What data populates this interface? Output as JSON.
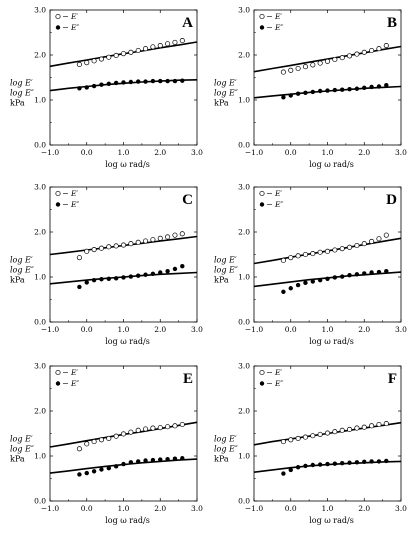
{
  "chart_data": [
    {
      "type": "scatter",
      "panel": "A",
      "ylabel": [
        "log E′",
        "log E″",
        "kPa"
      ],
      "xlabel": "log ω  rad/s",
      "xlim": [
        -1.0,
        3.0
      ],
      "ylim": [
        0.0,
        3.0
      ],
      "xticks": [
        "−1.0",
        "0.0",
        "1.0",
        "2.0",
        "3.0"
      ],
      "yticks": [
        "0.0",
        "1.0",
        "2.0",
        "3.0"
      ],
      "legend": [
        "E′",
        "E″"
      ],
      "series": [
        {
          "name": "E′",
          "marker": "open",
          "x": [
            -0.2,
            0.0,
            0.2,
            0.4,
            0.6,
            0.8,
            1.0,
            1.2,
            1.4,
            1.6,
            1.8,
            2.0,
            2.2,
            2.4,
            2.6
          ],
          "y": [
            1.79,
            1.83,
            1.87,
            1.91,
            1.95,
            1.99,
            2.03,
            2.06,
            2.1,
            2.14,
            2.18,
            2.21,
            2.25,
            2.28,
            2.32
          ]
        },
        {
          "name": "E″",
          "marker": "filled",
          "x": [
            -0.2,
            0.0,
            0.2,
            0.4,
            0.6,
            0.8,
            1.0,
            1.2,
            1.4,
            1.6,
            1.8,
            2.0,
            2.2,
            2.4,
            2.6
          ],
          "y": [
            1.26,
            1.28,
            1.31,
            1.34,
            1.36,
            1.38,
            1.39,
            1.4,
            1.41,
            1.41,
            1.42,
            1.42,
            1.42,
            1.42,
            1.43
          ]
        }
      ],
      "fits": [
        {
          "x": [
            -1.0,
            -0.5,
            0.0,
            0.5,
            1.0,
            1.5,
            2.0,
            2.5,
            3.0
          ],
          "y": [
            1.75,
            1.82,
            1.89,
            1.96,
            2.03,
            2.09,
            2.16,
            2.22,
            2.29
          ]
        },
        {
          "x": [
            -1.0,
            -0.5,
            0.0,
            0.5,
            1.0,
            1.5,
            2.0,
            2.5,
            3.0
          ],
          "y": [
            1.21,
            1.26,
            1.3,
            1.34,
            1.37,
            1.4,
            1.42,
            1.44,
            1.45
          ]
        }
      ]
    },
    {
      "type": "scatter",
      "panel": "B",
      "ylabel": [
        "log E′",
        "log E″",
        "kPa"
      ],
      "xlabel": "log ω  rad/s",
      "xlim": [
        -1.0,
        3.0
      ],
      "ylim": [
        0.0,
        3.0
      ],
      "xticks": [
        "−1.0",
        "0.0",
        "1.0",
        "2.0",
        "3.0"
      ],
      "yticks": [
        "0.0",
        "1.0",
        "2.0",
        "3.0"
      ],
      "legend": [
        "E′",
        "E″"
      ],
      "series": [
        {
          "name": "E′",
          "marker": "open",
          "x": [
            -0.2,
            0.0,
            0.2,
            0.4,
            0.6,
            0.8,
            1.0,
            1.2,
            1.4,
            1.6,
            1.8,
            2.0,
            2.2,
            2.4,
            2.6
          ],
          "y": [
            1.62,
            1.66,
            1.7,
            1.74,
            1.78,
            1.82,
            1.86,
            1.9,
            1.94,
            1.98,
            2.02,
            2.06,
            2.1,
            2.14,
            2.21
          ]
        },
        {
          "name": "E″",
          "marker": "filled",
          "x": [
            -0.2,
            0.0,
            0.2,
            0.4,
            0.6,
            0.8,
            1.0,
            1.2,
            1.4,
            1.6,
            1.8,
            2.0,
            2.2,
            2.4,
            2.6
          ],
          "y": [
            1.06,
            1.1,
            1.14,
            1.16,
            1.18,
            1.2,
            1.21,
            1.22,
            1.23,
            1.24,
            1.25,
            1.27,
            1.29,
            1.3,
            1.33
          ]
        }
      ],
      "fits": [
        {
          "x": [
            -1.0,
            -0.5,
            0.0,
            0.5,
            1.0,
            1.5,
            2.0,
            2.5,
            3.0
          ],
          "y": [
            1.63,
            1.7,
            1.77,
            1.84,
            1.91,
            1.98,
            2.05,
            2.12,
            2.19
          ]
        },
        {
          "x": [
            -1.0,
            -0.5,
            0.0,
            0.5,
            1.0,
            1.5,
            2.0,
            2.5,
            3.0
          ],
          "y": [
            1.05,
            1.09,
            1.13,
            1.17,
            1.2,
            1.23,
            1.26,
            1.28,
            1.3
          ]
        }
      ]
    },
    {
      "type": "scatter",
      "panel": "C",
      "ylabel": [
        "log E′",
        "log E″",
        "kPa"
      ],
      "xlabel": "log ω  rad/s",
      "xlim": [
        -1.0,
        3.0
      ],
      "ylim": [
        0.0,
        3.0
      ],
      "xticks": [
        "−1.0",
        "0.0",
        "1.0",
        "2.0",
        "3.0"
      ],
      "yticks": [
        "0.0",
        "1.0",
        "2.0",
        "3.0"
      ],
      "legend": [
        "E′",
        "E″"
      ],
      "series": [
        {
          "name": "E′",
          "marker": "open",
          "x": [
            -0.2,
            0.0,
            0.2,
            0.4,
            0.6,
            0.8,
            1.0,
            1.2,
            1.4,
            1.6,
            1.8,
            2.0,
            2.2,
            2.4,
            2.6
          ],
          "y": [
            1.43,
            1.57,
            1.61,
            1.64,
            1.67,
            1.69,
            1.71,
            1.74,
            1.77,
            1.8,
            1.83,
            1.86,
            1.89,
            1.93,
            1.96
          ]
        },
        {
          "name": "E″",
          "marker": "filled",
          "x": [
            -0.2,
            0.0,
            0.2,
            0.4,
            0.6,
            0.8,
            1.0,
            1.2,
            1.4,
            1.6,
            1.8,
            2.0,
            2.2,
            2.4,
            2.6
          ],
          "y": [
            0.78,
            0.88,
            0.93,
            0.95,
            0.96,
            0.97,
            0.99,
            1.01,
            1.03,
            1.05,
            1.07,
            1.1,
            1.13,
            1.18,
            1.24
          ]
        }
      ],
      "fits": [
        {
          "x": [
            -1.0,
            -0.5,
            0.0,
            0.5,
            1.0,
            1.5,
            2.0,
            2.5,
            3.0
          ],
          "y": [
            1.5,
            1.55,
            1.6,
            1.65,
            1.7,
            1.75,
            1.8,
            1.85,
            1.9
          ]
        },
        {
          "x": [
            -1.0,
            -0.5,
            0.0,
            0.5,
            1.0,
            1.5,
            2.0,
            2.5,
            3.0
          ],
          "y": [
            0.85,
            0.89,
            0.93,
            0.97,
            1.0,
            1.03,
            1.06,
            1.08,
            1.1
          ]
        }
      ]
    },
    {
      "type": "scatter",
      "panel": "D",
      "ylabel": [
        "log E′",
        "log E″",
        "kPa"
      ],
      "xlabel": "log ω  rad/s",
      "xlim": [
        -1.0,
        3.0
      ],
      "ylim": [
        0.0,
        3.0
      ],
      "xticks": [
        "−1.0",
        "0.0",
        "1.0",
        "2.0",
        "3.0"
      ],
      "yticks": [
        "0.0",
        "1.0",
        "2.0",
        "3.0"
      ],
      "legend": [
        "E′",
        "E″"
      ],
      "series": [
        {
          "name": "E′",
          "marker": "open",
          "x": [
            -0.2,
            0.0,
            0.2,
            0.4,
            0.6,
            0.8,
            1.0,
            1.2,
            1.4,
            1.6,
            1.8,
            2.0,
            2.2,
            2.4,
            2.6
          ],
          "y": [
            1.37,
            1.43,
            1.47,
            1.5,
            1.52,
            1.55,
            1.57,
            1.6,
            1.63,
            1.66,
            1.7,
            1.74,
            1.79,
            1.85,
            1.93
          ]
        },
        {
          "name": "E″",
          "marker": "filled",
          "x": [
            -0.2,
            0.0,
            0.2,
            0.4,
            0.6,
            0.8,
            1.0,
            1.2,
            1.4,
            1.6,
            1.8,
            2.0,
            2.2,
            2.4,
            2.6
          ],
          "y": [
            0.67,
            0.75,
            0.82,
            0.87,
            0.9,
            0.93,
            0.96,
            0.99,
            1.01,
            1.04,
            1.06,
            1.08,
            1.1,
            1.11,
            1.13
          ]
        }
      ],
      "fits": [
        {
          "x": [
            -1.0,
            -0.5,
            0.0,
            0.5,
            1.0,
            1.5,
            2.0,
            2.5,
            3.0
          ],
          "y": [
            1.3,
            1.37,
            1.44,
            1.51,
            1.58,
            1.65,
            1.72,
            1.79,
            1.86
          ]
        },
        {
          "x": [
            -1.0,
            -0.5,
            0.0,
            0.5,
            1.0,
            1.5,
            2.0,
            2.5,
            3.0
          ],
          "y": [
            0.79,
            0.84,
            0.89,
            0.94,
            0.98,
            1.02,
            1.05,
            1.08,
            1.11
          ]
        }
      ]
    },
    {
      "type": "scatter",
      "panel": "E",
      "ylabel": [
        "log E′",
        "log E″",
        "kPa"
      ],
      "xlabel": "log ω  rad/s",
      "xlim": [
        -1.0,
        3.0
      ],
      "ylim": [
        0.0,
        3.0
      ],
      "xticks": [
        "−1.0",
        "0.0",
        "1.0",
        "2.0",
        "3.0"
      ],
      "yticks": [
        "0.0",
        "1.0",
        "2.0",
        "3.0"
      ],
      "legend": [
        "E′",
        "E″"
      ],
      "series": [
        {
          "name": "E′",
          "marker": "open",
          "x": [
            -0.2,
            0.0,
            0.2,
            0.4,
            0.6,
            0.8,
            1.0,
            1.2,
            1.4,
            1.6,
            1.8,
            2.0,
            2.2,
            2.4,
            2.6
          ],
          "y": [
            1.16,
            1.27,
            1.32,
            1.36,
            1.39,
            1.44,
            1.49,
            1.53,
            1.57,
            1.6,
            1.62,
            1.63,
            1.65,
            1.67,
            1.7
          ]
        },
        {
          "name": "E″",
          "marker": "filled",
          "x": [
            -0.2,
            0.0,
            0.2,
            0.4,
            0.6,
            0.8,
            1.0,
            1.2,
            1.4,
            1.6,
            1.8,
            2.0,
            2.2,
            2.4,
            2.6
          ],
          "y": [
            0.59,
            0.62,
            0.66,
            0.7,
            0.73,
            0.77,
            0.82,
            0.86,
            0.88,
            0.9,
            0.91,
            0.92,
            0.93,
            0.94,
            0.95
          ]
        }
      ],
      "fits": [
        {
          "x": [
            -1.0,
            -0.5,
            0.0,
            0.5,
            1.0,
            1.5,
            2.0,
            2.5,
            3.0
          ],
          "y": [
            1.2,
            1.27,
            1.34,
            1.41,
            1.48,
            1.54,
            1.61,
            1.68,
            1.75
          ]
        },
        {
          "x": [
            -1.0,
            -0.5,
            0.0,
            0.5,
            1.0,
            1.5,
            2.0,
            2.5,
            3.0
          ],
          "y": [
            0.62,
            0.67,
            0.72,
            0.77,
            0.81,
            0.85,
            0.88,
            0.91,
            0.93
          ]
        }
      ]
    },
    {
      "type": "scatter",
      "panel": "F",
      "ylabel": [
        "log E′",
        "log E″",
        "kPa"
      ],
      "xlabel": "log ω  rad/s",
      "xlim": [
        -1.0,
        3.0
      ],
      "ylim": [
        0.0,
        3.0
      ],
      "xticks": [
        "−1.0",
        "0.0",
        "1.0",
        "2.0",
        "3.0"
      ],
      "yticks": [
        "0.0",
        "1.0",
        "2.0",
        "3.0"
      ],
      "legend": [
        "E′",
        "E″"
      ],
      "series": [
        {
          "name": "E′",
          "marker": "open",
          "x": [
            -0.2,
            0.0,
            0.2,
            0.4,
            0.6,
            0.8,
            1.0,
            1.2,
            1.4,
            1.6,
            1.8,
            2.0,
            2.2,
            2.4,
            2.6
          ],
          "y": [
            1.32,
            1.36,
            1.39,
            1.42,
            1.45,
            1.48,
            1.51,
            1.54,
            1.57,
            1.59,
            1.62,
            1.64,
            1.67,
            1.7,
            1.72
          ]
        },
        {
          "name": "E″",
          "marker": "filled",
          "x": [
            -0.2,
            0.0,
            0.2,
            0.4,
            0.6,
            0.8,
            1.0,
            1.2,
            1.4,
            1.6,
            1.8,
            2.0,
            2.2,
            2.4,
            2.6
          ],
          "y": [
            0.61,
            0.69,
            0.75,
            0.78,
            0.8,
            0.81,
            0.82,
            0.83,
            0.84,
            0.85,
            0.86,
            0.87,
            0.88,
            0.88,
            0.89
          ]
        }
      ],
      "fits": [
        {
          "x": [
            -1.0,
            -0.5,
            0.0,
            0.5,
            1.0,
            1.5,
            2.0,
            2.5,
            3.0
          ],
          "y": [
            1.25,
            1.32,
            1.38,
            1.44,
            1.5,
            1.56,
            1.62,
            1.68,
            1.74
          ]
        },
        {
          "x": [
            -1.0,
            -0.5,
            0.0,
            0.5,
            1.0,
            1.5,
            2.0,
            2.5,
            3.0
          ],
          "y": [
            0.64,
            0.69,
            0.74,
            0.78,
            0.81,
            0.83,
            0.85,
            0.87,
            0.88
          ]
        }
      ]
    }
  ]
}
